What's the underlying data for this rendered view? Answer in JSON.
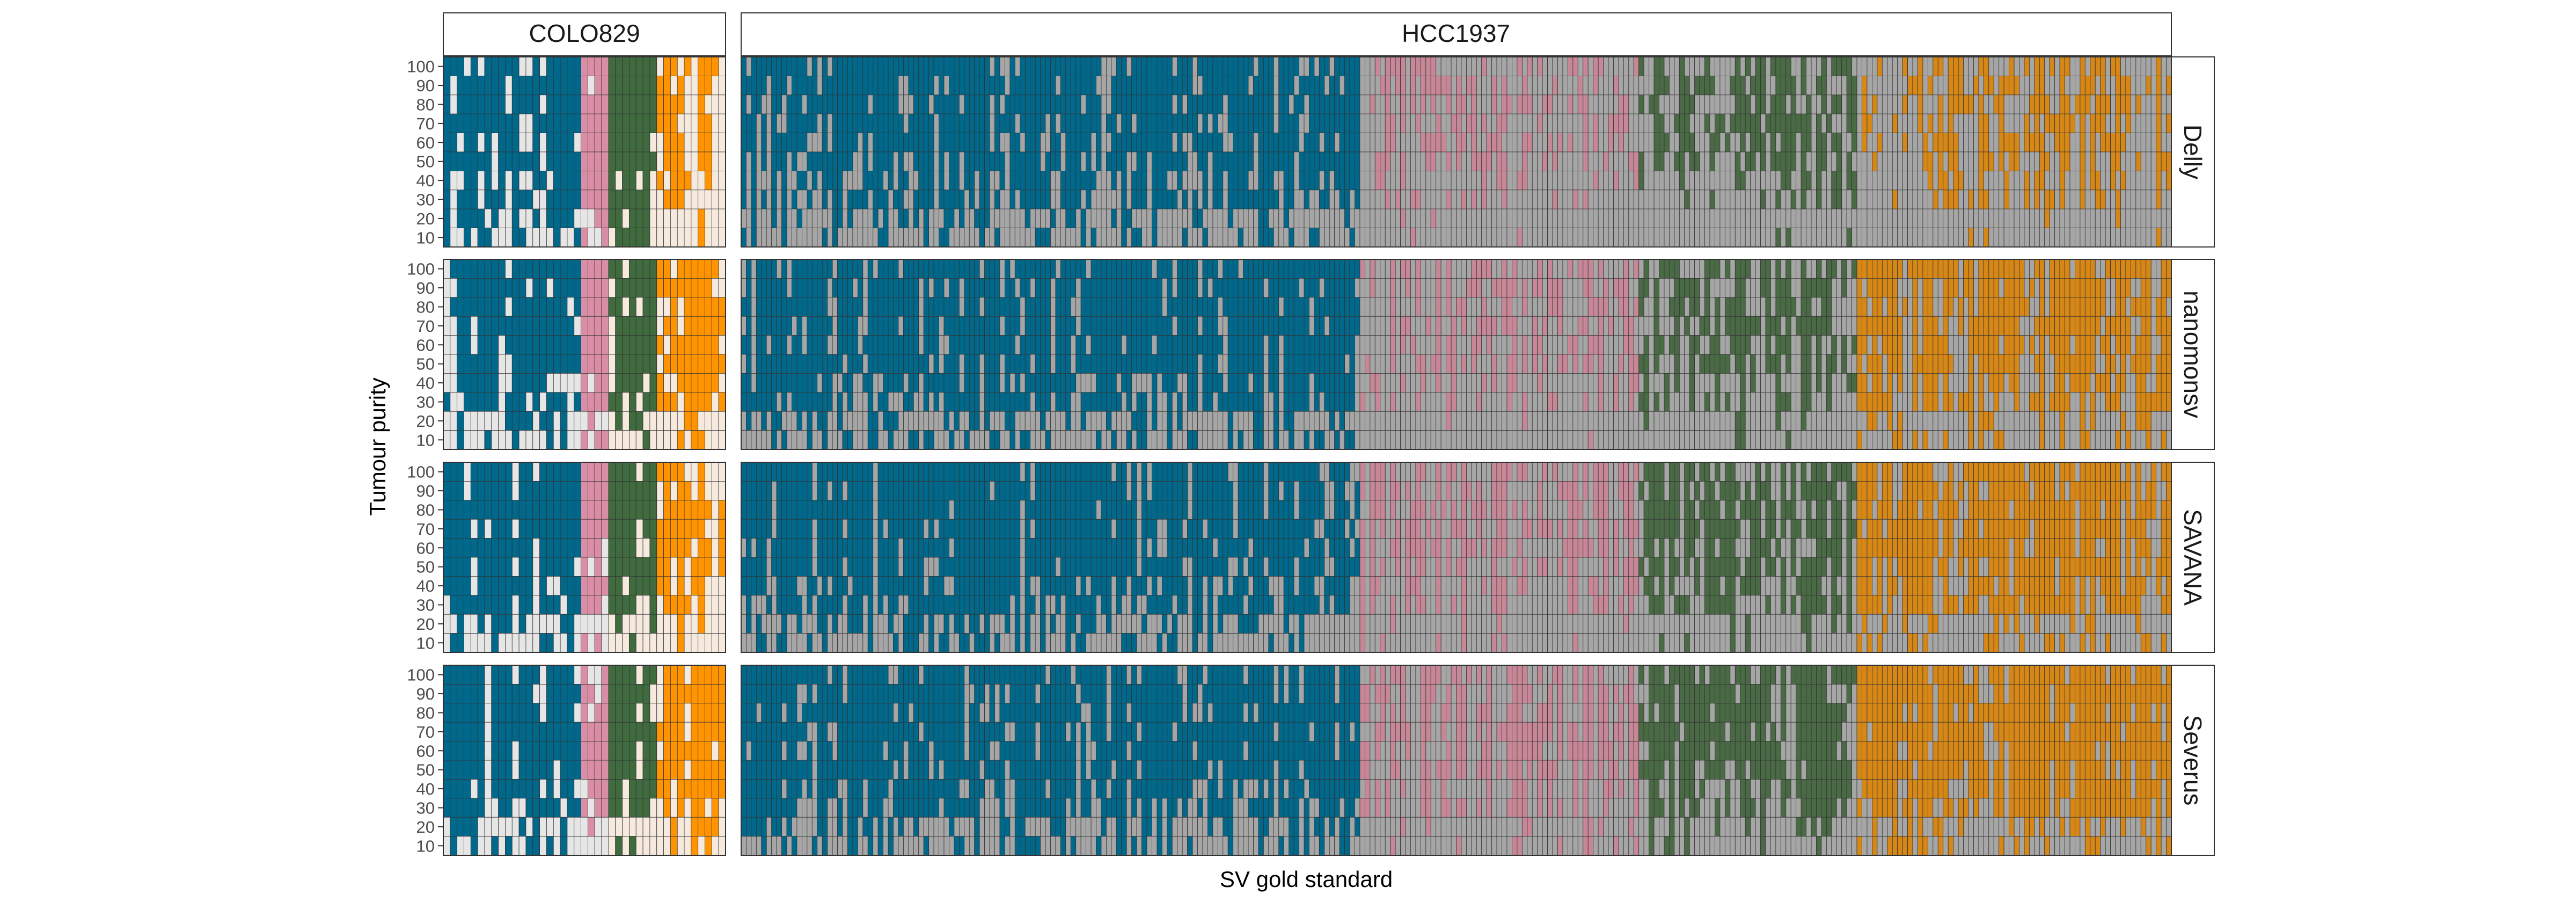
{
  "chart_data": {
    "type": "heatmap",
    "title": "",
    "xlabel": "SV gold standard",
    "ylabel": "Tumour purity",
    "y_ticks": [
      100,
      90,
      80,
      70,
      60,
      50,
      40,
      30,
      20,
      10
    ],
    "samples": [
      "COLO829",
      "HCC1937"
    ],
    "callers": [
      "Delly",
      "nanomonsv",
      "SAVANA",
      "Severus"
    ],
    "cell_states": [
      "detected",
      "not detected"
    ],
    "sv_type_colors": {
      "COLO829": [
        "#00688B",
        "#DA8EA5",
        "#3F6B3F",
        "#FF9400"
      ],
      "HCC1937": [
        "#00688B",
        "#C88797",
        "#496A44",
        "#D68716"
      ]
    },
    "missing_color_by_sample": {
      "COLO829": "#E6E6E6",
      "HCC1937": "#A6A6A6"
    },
    "missing_color_alt_by_type": {
      "COLO829": "#F6E9DD"
    },
    "sv_columns_per_group": {
      "COLO829": [
        20,
        4,
        7,
        10
      ],
      "HCC1937": [
        122,
        55,
        43,
        62
      ]
    },
    "detected_fraction_by_caller_and_group": {
      "Delly": {
        "COLO829": [
          0.8,
          1.0,
          0.85,
          0.4
        ],
        "HCC1937": [
          0.78,
          0.18,
          0.35,
          0.28
        ]
      },
      "nanomonsv": {
        "COLO829": [
          0.82,
          1.0,
          0.85,
          0.6
        ],
        "HCC1937": [
          0.8,
          0.28,
          0.45,
          0.6
        ]
      },
      "SAVANA": {
        "COLO829": [
          0.8,
          1.0,
          0.8,
          0.65
        ],
        "HCC1937": [
          0.8,
          0.4,
          0.55,
          0.75
        ]
      },
      "Severus": {
        "COLO829": [
          0.85,
          1.0,
          0.85,
          0.75
        ],
        "HCC1937": [
          0.82,
          0.45,
          0.7,
          0.85
        ]
      }
    },
    "legend": "none"
  }
}
